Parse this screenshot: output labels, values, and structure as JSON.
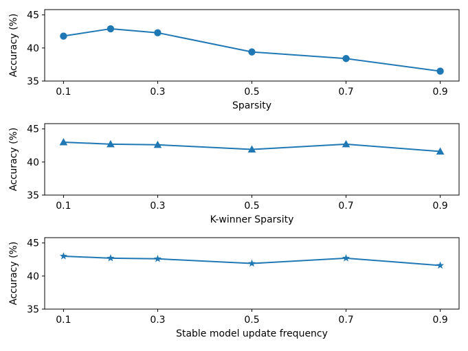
{
  "chart_data": [
    {
      "type": "line",
      "marker": "circle",
      "x": [
        0.1,
        0.2,
        0.3,
        0.5,
        0.7,
        0.9
      ],
      "values": [
        41.8,
        42.9,
        42.3,
        39.4,
        38.4,
        36.5
      ],
      "xticks": [
        0.1,
        0.3,
        0.5,
        0.7,
        0.9
      ],
      "xtick_labels": [
        "0.1",
        "0.3",
        "0.5",
        "0.7",
        "0.9"
      ],
      "yticks": [
        35,
        40,
        45
      ],
      "ytick_labels": [
        "35",
        "40",
        "45"
      ],
      "xlim": [
        0.06,
        0.94
      ],
      "ylim": [
        35,
        45.8
      ],
      "xlabel": "Sparsity",
      "ylabel": "Accuracy (%)",
      "color": "#1f77b4",
      "grid": false
    },
    {
      "type": "line",
      "marker": "triangle",
      "x": [
        0.1,
        0.2,
        0.3,
        0.5,
        0.7,
        0.9
      ],
      "values": [
        43.0,
        42.7,
        42.6,
        41.9,
        42.7,
        41.6
      ],
      "xticks": [
        0.1,
        0.3,
        0.5,
        0.7,
        0.9
      ],
      "xtick_labels": [
        "0.1",
        "0.3",
        "0.5",
        "0.7",
        "0.9"
      ],
      "yticks": [
        35,
        40,
        45
      ],
      "ytick_labels": [
        "35",
        "40",
        "45"
      ],
      "xlim": [
        0.06,
        0.94
      ],
      "ylim": [
        35,
        45.8
      ],
      "xlabel": "K-winner Sparsity",
      "ylabel": "Accuracy (%)",
      "color": "#1f77b4",
      "grid": false
    },
    {
      "type": "line",
      "marker": "star",
      "x": [
        0.1,
        0.2,
        0.3,
        0.5,
        0.7,
        0.9
      ],
      "values": [
        43.0,
        42.7,
        42.6,
        41.9,
        42.7,
        41.6
      ],
      "xticks": [
        0.1,
        0.3,
        0.5,
        0.7,
        0.9
      ],
      "xtick_labels": [
        "0.1",
        "0.3",
        "0.5",
        "0.7",
        "0.9"
      ],
      "yticks": [
        35,
        40,
        45
      ],
      "ytick_labels": [
        "35",
        "40",
        "45"
      ],
      "xlim": [
        0.06,
        0.94
      ],
      "ylim": [
        35,
        45.8
      ],
      "xlabel": "Stable model update frequency",
      "ylabel": "Accuracy (%)",
      "color": "#1f77b4",
      "grid": false
    }
  ]
}
